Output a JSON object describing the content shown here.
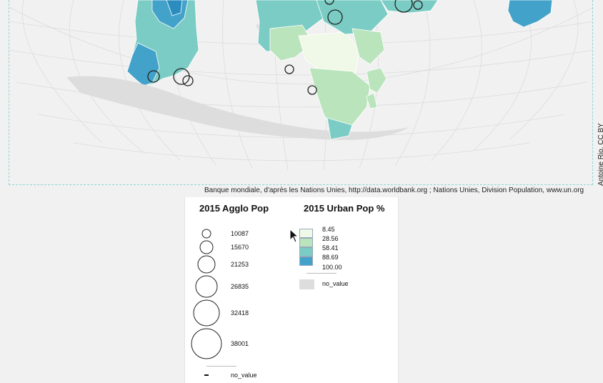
{
  "map": {
    "source_text": "Banque mondiale, d'après les Nations Unies, http://data.worldbank.org ; Nations Unies, Division Population, www.un.org",
    "credit_text": "Antoine Rio, CC BY"
  },
  "legend_circles": {
    "title": "2015 Agglo Pop",
    "items": [
      {
        "value": "10087"
      },
      {
        "value": "15670"
      },
      {
        "value": "21253"
      },
      {
        "value": "26835"
      },
      {
        "value": "32418"
      },
      {
        "value": "38001"
      }
    ],
    "no_value_label": "no_value"
  },
  "legend_choropleth": {
    "title": "2015 Urban Pop %",
    "breaks": [
      "8.45",
      "28.56",
      "58.41",
      "88.69",
      "100.00"
    ],
    "colors": [
      "#f0f9e8",
      "#bae4bc",
      "#7bccc4",
      "#43a2ca"
    ],
    "no_value_label": "no_value",
    "no_value_color": "#dddddd"
  }
}
